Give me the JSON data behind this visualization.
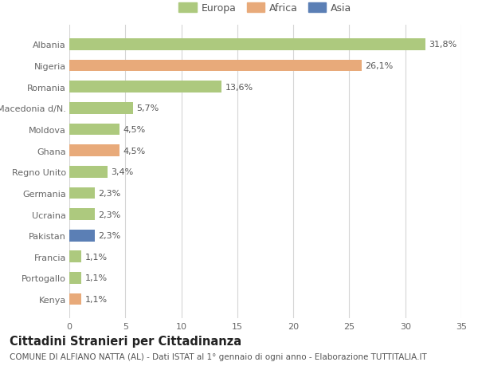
{
  "categories": [
    "Albania",
    "Nigeria",
    "Romania",
    "Macedonia d/N.",
    "Moldova",
    "Ghana",
    "Regno Unito",
    "Germania",
    "Ucraina",
    "Pakistan",
    "Francia",
    "Portogallo",
    "Kenya"
  ],
  "values": [
    31.8,
    26.1,
    13.6,
    5.7,
    4.5,
    4.5,
    3.4,
    2.3,
    2.3,
    2.3,
    1.1,
    1.1,
    1.1
  ],
  "labels": [
    "31,8%",
    "26,1%",
    "13,6%",
    "5,7%",
    "4,5%",
    "4,5%",
    "3,4%",
    "2,3%",
    "2,3%",
    "2,3%",
    "1,1%",
    "1,1%",
    "1,1%"
  ],
  "continents": [
    "Europa",
    "Africa",
    "Europa",
    "Europa",
    "Europa",
    "Africa",
    "Europa",
    "Europa",
    "Europa",
    "Asia",
    "Europa",
    "Europa",
    "Africa"
  ],
  "colors": {
    "Europa": "#adc97e",
    "Africa": "#e8aa7a",
    "Asia": "#5b7fb5"
  },
  "xlim": [
    0,
    35
  ],
  "xticks": [
    0,
    5,
    10,
    15,
    20,
    25,
    30,
    35
  ],
  "title": "Cittadini Stranieri per Cittadinanza",
  "subtitle": "COMUNE DI ALFIANO NATTA (AL) - Dati ISTAT al 1° gennaio di ogni anno - Elaborazione TUTTITALIA.IT",
  "bg_color": "#ffffff",
  "grid_color": "#d5d5d5",
  "bar_height": 0.55,
  "label_fontsize": 8,
  "title_fontsize": 10.5,
  "subtitle_fontsize": 7.5,
  "ytick_fontsize": 8,
  "xtick_fontsize": 8
}
